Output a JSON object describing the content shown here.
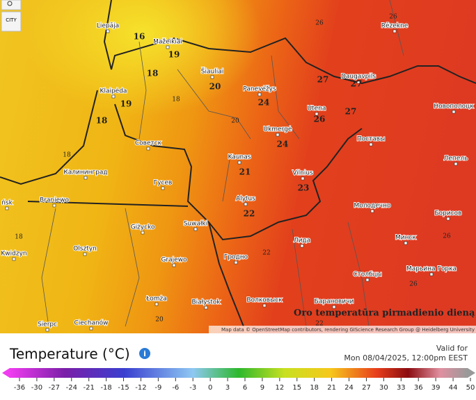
{
  "map": {
    "city_button": "CITY",
    "caption": "Oro temperatūra pirmadienio dieną",
    "attribution": "Map data © OpenStreetMap contributors, rendering GIScience Research Group @ Heidelberg University",
    "cities": [
      "Liepāja",
      "Mažeikiai",
      "Šiauliai",
      "Panevėžys",
      "Rēzekne",
      "Daugavpils",
      "Utena",
      "Ukmergė",
      "Klaipėda",
      "Советск",
      "Калининград",
      "Kaunas",
      "Vilnius",
      "Гусев",
      "Поставы",
      "Новополоцк",
      "Лепель",
      "Alytus",
      "Braniewo",
      "ńsk",
      "Suwałki",
      "Giżycko",
      "Молодечно",
      "Борисов",
      "Лида",
      "Минск",
      "Olsztyn",
      "Kwidzyn",
      "Гродно",
      "Grajewo",
      "Столбцы",
      "Марьина Горка",
      "Łomża",
      "Białystok",
      "Волковыск",
      "Барановичи",
      "Sierpc",
      "Ciechanów"
    ],
    "temperatures": [
      16,
      19,
      18,
      20,
      19,
      18,
      24,
      27,
      27,
      26,
      27,
      24,
      21,
      23,
      22,
      26,
      26,
      18,
      20,
      18,
      22,
      26,
      26,
      20,
      22,
      18
    ]
  },
  "header": {
    "title": "Temperature (°C)",
    "valid_label": "Valid for",
    "valid_time": "Mon 08/04/2025, 12:00pm EEST"
  },
  "scale": {
    "ticks": [
      -36,
      -30,
      -27,
      -24,
      -21,
      -18,
      -15,
      -12,
      -9,
      -6,
      -3,
      0,
      3,
      6,
      9,
      12,
      15,
      18,
      21,
      24,
      27,
      30,
      33,
      36,
      39,
      44,
      50
    ]
  }
}
